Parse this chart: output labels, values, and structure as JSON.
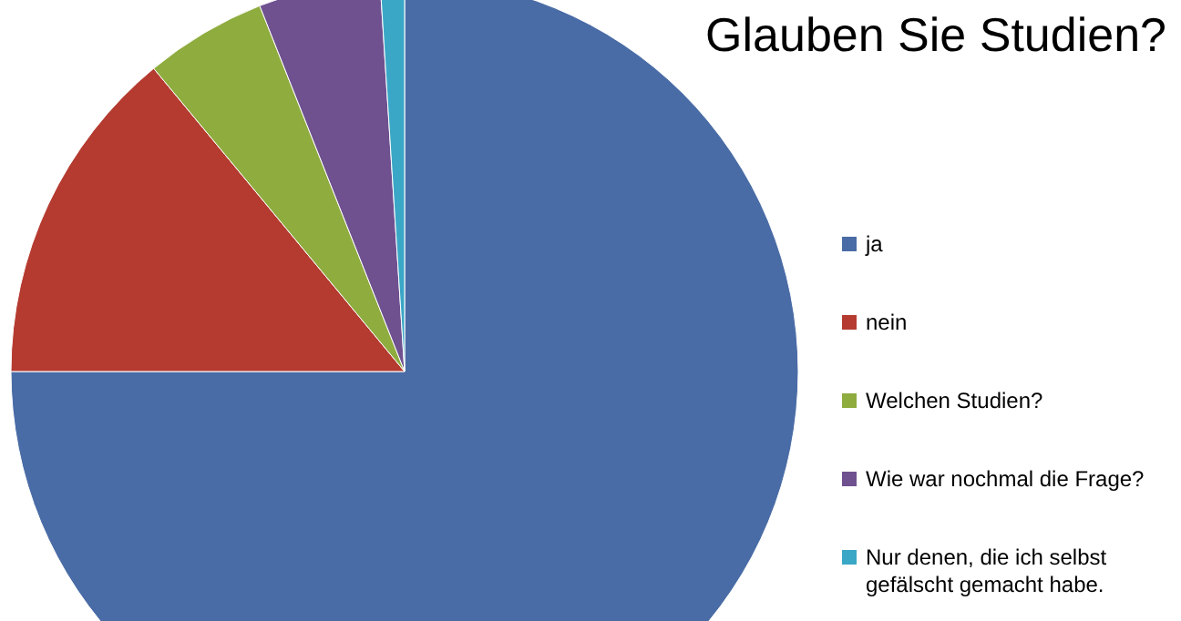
{
  "chart_data": {
    "type": "pie",
    "title": "Glauben Sie Studien?",
    "categories": [
      "ja",
      "nein",
      "Welchen Studien?",
      "Wie war nochmal die Frage?",
      "Nur denen, die ich selbst gefälscht gemacht habe."
    ],
    "values": [
      75,
      14,
      5,
      5,
      1
    ],
    "colors": [
      "#4a6ca6",
      "#b53b30",
      "#8fac3f",
      "#6f5190",
      "#3ba7c6"
    ],
    "legend": "right"
  }
}
